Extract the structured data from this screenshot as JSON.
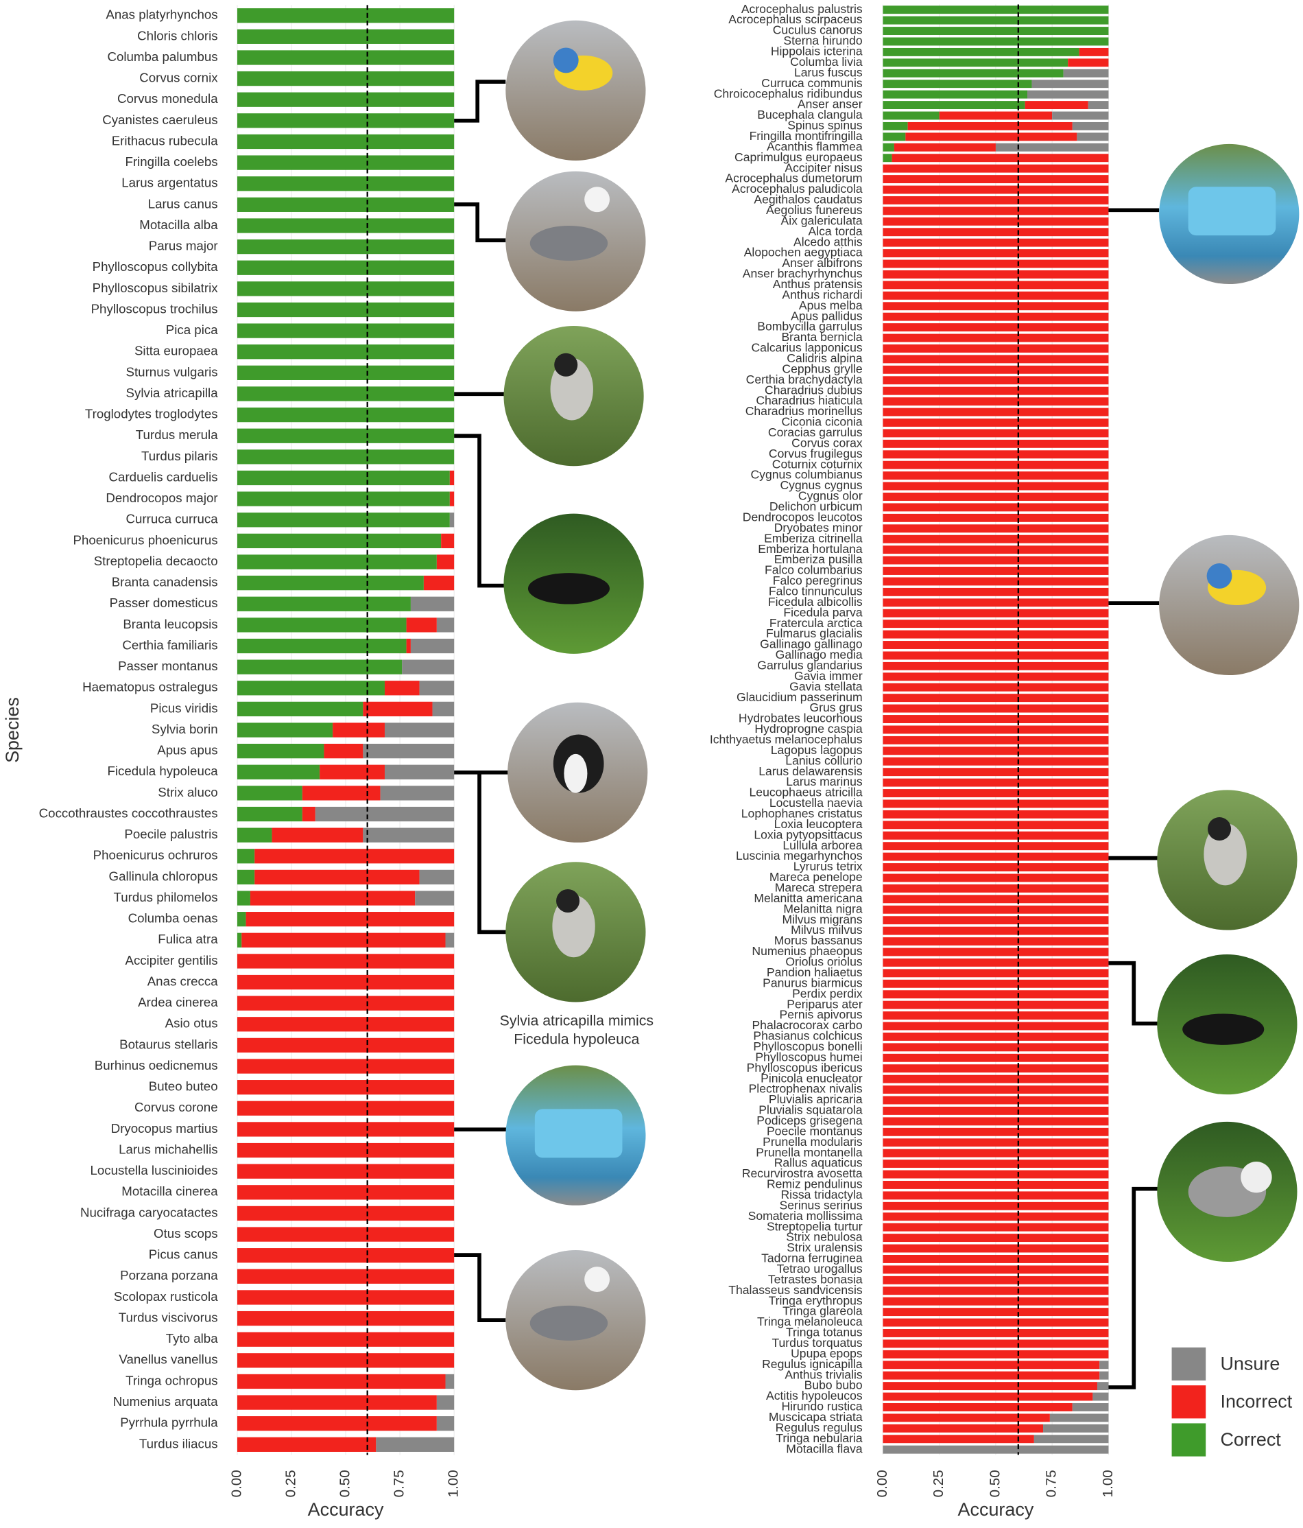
{
  "chart_data": [
    {
      "type": "stacked-bar-horizontal",
      "xlabel": "Accuracy",
      "ylabel": "Species",
      "xlim": [
        0,
        1
      ],
      "xticks": [
        {
          "value": 0,
          "label": "0.00"
        },
        {
          "value": 0.25,
          "label": "0.25"
        },
        {
          "value": 0.5,
          "label": "0.50"
        },
        {
          "value": 0.75,
          "label": "0.75"
        },
        {
          "value": 1,
          "label": "1.00"
        }
      ],
      "grid": true,
      "reference_line": 0.6,
      "annotations": [
        "Sylvia atricapilla mimics",
        "Ficedula hypoleuca"
      ],
      "categories": [
        "Anas platyrhynchos",
        "Chloris chloris",
        "Columba palumbus",
        "Corvus cornix",
        "Corvus monedula",
        "Cyanistes caeruleus",
        "Erithacus rubecula",
        "Fringilla coelebs",
        "Larus argentatus",
        "Larus canus",
        "Motacilla alba",
        "Parus major",
        "Phylloscopus collybita",
        "Phylloscopus sibilatrix",
        "Phylloscopus trochilus",
        "Pica pica",
        "Sitta europaea",
        "Sturnus vulgaris",
        "Sylvia atricapilla",
        "Troglodytes troglodytes",
        "Turdus merula",
        "Turdus pilaris",
        "Carduelis carduelis",
        "Dendrocopos major",
        "Curruca curruca",
        "Phoenicurus phoenicurus",
        "Streptopelia decaocto",
        "Branta canadensis",
        "Passer domesticus",
        "Branta leucopsis",
        "Certhia familiaris",
        "Passer montanus",
        "Haematopus ostralegus",
        "Picus viridis",
        "Sylvia borin",
        "Apus apus",
        "Ficedula hypoleuca",
        "Strix aluco",
        "Coccothraustes coccothraustes",
        "Poecile palustris",
        "Phoenicurus ochruros",
        "Gallinula chloropus",
        "Turdus philomelos",
        "Columba oenas",
        "Fulica atra",
        "Accipiter gentilis",
        "Anas crecca",
        "Ardea cinerea",
        "Asio otus",
        "Botaurus stellaris",
        "Burhinus oedicnemus",
        "Buteo buteo",
        "Corvus corone",
        "Dryocopus martius",
        "Larus michahellis",
        "Locustella luscinioides",
        "Motacilla cinerea",
        "Nucifraga caryocatactes",
        "Otus scops",
        "Picus canus",
        "Porzana porzana",
        "Scolopax rusticola",
        "Turdus viscivorus",
        "Tyto alba",
        "Vanellus vanellus",
        "Tringa ochropus",
        "Numenius arquata",
        "Pyrrhula pyrrhula",
        "Turdus iliacus"
      ],
      "series": [
        {
          "name": "Correct",
          "color": "#3f9b2b",
          "values": [
            1,
            1,
            1,
            1,
            1,
            1,
            1,
            1,
            1,
            1,
            1,
            1,
            1,
            1,
            1,
            1,
            1,
            1,
            1,
            1,
            1,
            1,
            0.98,
            0.98,
            0.98,
            0.94,
            0.92,
            0.86,
            0.8,
            0.78,
            0.78,
            0.76,
            0.68,
            0.58,
            0.44,
            0.4,
            0.38,
            0.3,
            0.3,
            0.16,
            0.08,
            0.08,
            0.06,
            0.04,
            0.02,
            0,
            0,
            0,
            0,
            0,
            0,
            0,
            0,
            0,
            0,
            0,
            0,
            0,
            0,
            0,
            0,
            0,
            0,
            0,
            0,
            0,
            0,
            0,
            0
          ]
        },
        {
          "name": "Incorrect",
          "color": "#f2231d",
          "values": [
            0,
            0,
            0,
            0,
            0,
            0,
            0,
            0,
            0,
            0,
            0,
            0,
            0,
            0,
            0,
            0,
            0,
            0,
            0,
            0,
            0,
            0,
            0.02,
            0.02,
            0,
            0.06,
            0.08,
            0.14,
            0,
            0.14,
            0.02,
            0,
            0.16,
            0.32,
            0.24,
            0.18,
            0.3,
            0.36,
            0.06,
            0.42,
            0.92,
            0.76,
            0.76,
            0.96,
            0.94,
            1,
            1,
            1,
            1,
            1,
            1,
            1,
            1,
            1,
            1,
            1,
            1,
            1,
            1,
            1,
            1,
            1,
            1,
            1,
            1,
            0.96,
            0.92,
            0.92,
            0.64
          ]
        },
        {
          "name": "Unsure",
          "color": "#878787",
          "values": [
            0,
            0,
            0,
            0,
            0,
            0,
            0,
            0,
            0,
            0,
            0,
            0,
            0,
            0,
            0,
            0,
            0,
            0,
            0,
            0,
            0,
            0,
            0,
            0,
            0.02,
            0,
            0,
            0,
            0.2,
            0.08,
            0.2,
            0.24,
            0.16,
            0.1,
            0.32,
            0.42,
            0.32,
            0.34,
            0.64,
            0.42,
            0,
            0.16,
            0.18,
            0,
            0.04,
            0,
            0,
            0,
            0,
            0,
            0,
            0,
            0,
            0,
            0,
            0,
            0,
            0,
            0,
            0,
            0,
            0,
            0,
            0,
            0,
            0.04,
            0.08,
            0.08,
            0.36
          ]
        }
      ]
    },
    {
      "type": "stacked-bar-horizontal",
      "xlabel": "Accuracy",
      "xlim": [
        0,
        1
      ],
      "xticks": [
        {
          "value": 0,
          "label": "0.00"
        },
        {
          "value": 0.25,
          "label": "0.25"
        },
        {
          "value": 0.5,
          "label": "0.50"
        },
        {
          "value": 0.75,
          "label": "0.75"
        },
        {
          "value": 1,
          "label": "1.00"
        }
      ],
      "grid": true,
      "reference_line": 0.6,
      "legend": "right",
      "categories": [
        "Acrocephalus palustris",
        "Acrocephalus scirpaceus",
        "Cuculus canorus",
        "Sterna hirundo",
        "Hippolais icterina",
        "Columba livia",
        "Larus fuscus",
        "Curruca communis",
        "Chroicocephalus ridibundus",
        "Anser anser",
        "Bucephala clangula",
        "Spinus spinus",
        "Fringilla montifringilla",
        "Acanthis flammea",
        "Caprimulgus europaeus",
        "Accipiter nisus",
        "Acrocephalus dumetorum",
        "Acrocephalus paludicola",
        "Aegithalos caudatus",
        "Aegolius funereus",
        "Aix galericulata",
        "Alca torda",
        "Alcedo atthis",
        "Alopochen aegyptiaca",
        "Anser albifrons",
        "Anser brachyrhynchus",
        "Anthus pratensis",
        "Anthus richardi",
        "Apus melba",
        "Apus pallidus",
        "Bombycilla garrulus",
        "Branta bernicla",
        "Calcarius lapponicus",
        "Calidris alpina",
        "Cepphus grylle",
        "Certhia brachydactyla",
        "Charadrius dubius",
        "Charadrius hiaticula",
        "Charadrius morinellus",
        "Ciconia ciconia",
        "Coracias garrulus",
        "Corvus corax",
        "Corvus frugilegus",
        "Coturnix coturnix",
        "Cygnus columbianus",
        "Cygnus cygnus",
        "Cygnus olor",
        "Delichon urbicum",
        "Dendrocopos leucotos",
        "Dryobates minor",
        "Emberiza citrinella",
        "Emberiza hortulana",
        "Emberiza pusilla",
        "Falco columbarius",
        "Falco peregrinus",
        "Falco tinnunculus",
        "Ficedula albicollis",
        "Ficedula parva",
        "Fratercula arctica",
        "Fulmarus glacialis",
        "Gallinago gallinago",
        "Gallinago media",
        "Garrulus glandarius",
        "Gavia immer",
        "Gavia stellata",
        "Glaucidium passerinum",
        "Grus grus",
        "Hydrobates leucorhous",
        "Hydroprogne caspia",
        "Ichthyaetus melanocephalus",
        "Lagopus lagopus",
        "Lanius collurio",
        "Larus delawarensis",
        "Larus marinus",
        "Leucophaeus atricilla",
        "Locustella naevia",
        "Lophophanes cristatus",
        "Loxia leucoptera",
        "Loxia pytyopsittacus",
        "Lullula arborea",
        "Luscinia megarhynchos",
        "Lyrurus tetrix",
        "Mareca penelope",
        "Mareca strepera",
        "Melanitta americana",
        "Melanitta nigra",
        "Milvus migrans",
        "Milvus milvus",
        "Morus bassanus",
        "Numenius phaeopus",
        "Oriolus oriolus",
        "Pandion haliaetus",
        "Panurus biarmicus",
        "Perdix perdix",
        "Periparus ater",
        "Pernis apivorus",
        "Phalacrocorax carbo",
        "Phasianus colchicus",
        "Phylloscopus bonelli",
        "Phylloscopus humei",
        "Phylloscopus ibericus",
        "Pinicola enucleator",
        "Plectrophenax nivalis",
        "Pluvialis apricaria",
        "Pluvialis squatarola",
        "Podiceps grisegena",
        "Poecile montanus",
        "Prunella modularis",
        "Prunella montanella",
        "Rallus aquaticus",
        "Recurvirostra avosetta",
        "Remiz pendulinus",
        "Rissa tridactyla",
        "Serinus serinus",
        "Somateria mollissima",
        "Streptopelia turtur",
        "Strix nebulosa",
        "Strix uralensis",
        "Tadorna ferruginea",
        "Tetrao urogallus",
        "Tetrastes bonasia",
        "Thalasseus sandvicensis",
        "Tringa erythropus",
        "Tringa glareola",
        "Tringa melanoleuca",
        "Tringa totanus",
        "Turdus torquatus",
        "Upupa epops",
        "Regulus ignicapilla",
        "Anthus trivialis",
        "Bubo bubo",
        "Actitis hypoleucos",
        "Hirundo rustica",
        "Muscicapa striata",
        "Regulus regulus",
        "Tringa nebularia",
        "Motacilla flava"
      ],
      "series": [
        {
          "name": "Correct",
          "color": "#3f9b2b",
          "values": [
            1,
            1,
            1,
            1,
            0.87,
            0.82,
            0.8,
            0.66,
            0.64,
            0.63,
            0.25,
            0.11,
            0.1,
            0.05,
            0.04,
            0,
            0,
            0,
            0,
            0,
            0,
            0,
            0,
            0,
            0,
            0,
            0,
            0,
            0,
            0,
            0,
            0,
            0,
            0,
            0,
            0,
            0,
            0,
            0,
            0,
            0,
            0,
            0,
            0,
            0,
            0,
            0,
            0,
            0,
            0,
            0,
            0,
            0,
            0,
            0,
            0,
            0,
            0,
            0,
            0,
            0,
            0,
            0,
            0,
            0,
            0,
            0,
            0,
            0,
            0,
            0,
            0,
            0,
            0,
            0,
            0,
            0,
            0,
            0,
            0,
            0,
            0,
            0,
            0,
            0,
            0,
            0,
            0,
            0,
            0,
            0,
            0,
            0,
            0,
            0,
            0,
            0,
            0,
            0,
            0,
            0,
            0,
            0,
            0,
            0,
            0,
            0,
            0,
            0,
            0,
            0,
            0,
            0,
            0,
            0,
            0,
            0,
            0,
            0,
            0,
            0,
            0,
            0,
            0,
            0,
            0,
            0,
            0,
            0,
            0,
            0,
            0,
            0,
            0,
            0,
            0,
            0
          ]
        },
        {
          "name": "Incorrect",
          "color": "#f2231d",
          "values": [
            0,
            0,
            0,
            0,
            0.13,
            0.18,
            0,
            0,
            0,
            0.28,
            0.5,
            0.73,
            0.76,
            0.45,
            0.96,
            1,
            1,
            1,
            1,
            1,
            1,
            1,
            1,
            1,
            1,
            1,
            1,
            1,
            1,
            1,
            1,
            1,
            1,
            1,
            1,
            1,
            1,
            1,
            1,
            1,
            1,
            1,
            1,
            1,
            1,
            1,
            1,
            1,
            1,
            1,
            1,
            1,
            1,
            1,
            1,
            1,
            1,
            1,
            1,
            1,
            1,
            1,
            1,
            1,
            1,
            1,
            1,
            1,
            1,
            1,
            1,
            1,
            1,
            1,
            1,
            1,
            1,
            1,
            1,
            1,
            1,
            1,
            1,
            1,
            1,
            1,
            1,
            1,
            1,
            1,
            1,
            1,
            1,
            1,
            1,
            1,
            1,
            1,
            1,
            1,
            1,
            1,
            1,
            1,
            1,
            1,
            1,
            1,
            1,
            1,
            1,
            1,
            1,
            1,
            1,
            1,
            1,
            1,
            1,
            1,
            1,
            1,
            1,
            1,
            1,
            1,
            1,
            1,
            0.96,
            0.96,
            0.95,
            0.93,
            0.84,
            0.74,
            0.71,
            0.67,
            0
          ]
        },
        {
          "name": "Unsure",
          "color": "#878787",
          "values": [
            0,
            0,
            0,
            0,
            0,
            0,
            0.2,
            0.34,
            0.36,
            0.09,
            0.25,
            0.16,
            0.14,
            0.5,
            0,
            0,
            0,
            0,
            0,
            0,
            0,
            0,
            0,
            0,
            0,
            0,
            0,
            0,
            0,
            0,
            0,
            0,
            0,
            0,
            0,
            0,
            0,
            0,
            0,
            0,
            0,
            0,
            0,
            0,
            0,
            0,
            0,
            0,
            0,
            0,
            0,
            0,
            0,
            0,
            0,
            0,
            0,
            0,
            0,
            0,
            0,
            0,
            0,
            0,
            0,
            0,
            0,
            0,
            0,
            0,
            0,
            0,
            0,
            0,
            0,
            0,
            0,
            0,
            0,
            0,
            0,
            0,
            0,
            0,
            0,
            0,
            0,
            0,
            0,
            0,
            0,
            0,
            0,
            0,
            0,
            0,
            0,
            0,
            0,
            0,
            0,
            0,
            0,
            0,
            0,
            0,
            0,
            0,
            0,
            0,
            0,
            0,
            0,
            0,
            0,
            0,
            0,
            0,
            0,
            0,
            0,
            0,
            0,
            0,
            0,
            0,
            0,
            0,
            0.04,
            0.04,
            0.05,
            0.07,
            0.16,
            0.26,
            0.29,
            0.33,
            1
          ]
        }
      ]
    }
  ]
}
